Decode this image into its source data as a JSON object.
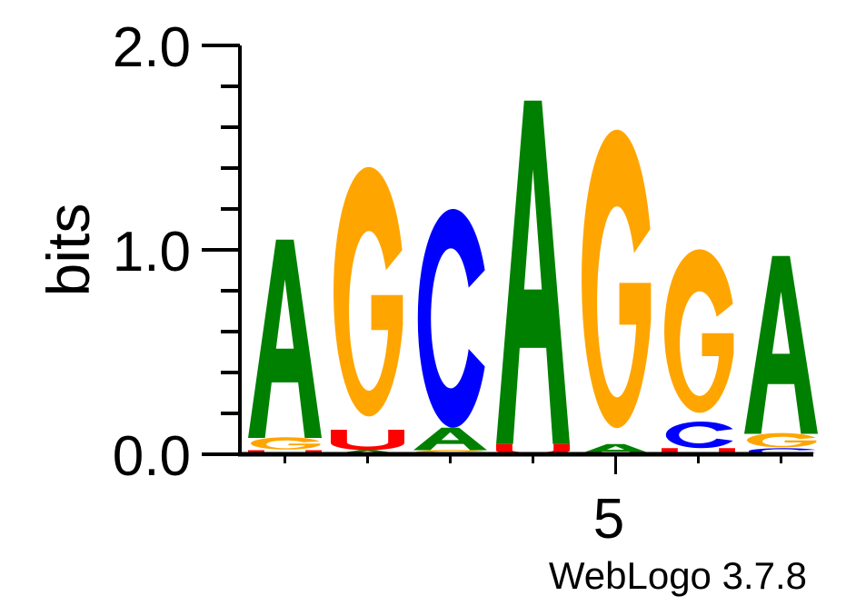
{
  "chart_data": {
    "type": "sequence-logo",
    "ylabel": "bits",
    "ylim": [
      0,
      2
    ],
    "y_ticks": [
      "0.0",
      "1.0",
      "2.0"
    ],
    "x_ticks": [
      1,
      2,
      3,
      4,
      5,
      6,
      7
    ],
    "x_tick_labels": {
      "5": "5"
    },
    "colors": {
      "A": "#008000",
      "G": "#ffa500",
      "C": "#0000ff",
      "U": "#ff0000"
    },
    "positions": [
      {
        "position": 1,
        "stack": [
          {
            "letter": "U",
            "bits": 0.02
          },
          {
            "letter": "G",
            "bits": 0.06
          },
          {
            "letter": "A",
            "bits": 0.97
          }
        ]
      },
      {
        "position": 2,
        "stack": [
          {
            "letter": "A",
            "bits": 0.02
          },
          {
            "letter": "U",
            "bits": 0.1
          },
          {
            "letter": "G",
            "bits": 1.22
          }
        ]
      },
      {
        "position": 3,
        "stack": [
          {
            "letter": "G",
            "bits": 0.02
          },
          {
            "letter": "A",
            "bits": 0.11
          },
          {
            "letter": "C",
            "bits": 1.07
          }
        ]
      },
      {
        "position": 4,
        "stack": [
          {
            "letter": "U",
            "bits": 0.05
          },
          {
            "letter": "A",
            "bits": 1.68
          }
        ]
      },
      {
        "position": 5,
        "stack": [
          {
            "letter": "A",
            "bits": 0.05
          },
          {
            "letter": "G",
            "bits": 1.46
          }
        ]
      },
      {
        "position": 6,
        "stack": [
          {
            "letter": "U",
            "bits": 0.03
          },
          {
            "letter": "C",
            "bits": 0.13
          },
          {
            "letter": "G",
            "bits": 0.8
          }
        ]
      },
      {
        "position": 7,
        "stack": [
          {
            "letter": "C",
            "bits": 0.03
          },
          {
            "letter": "G",
            "bits": 0.07
          },
          {
            "letter": "A",
            "bits": 0.87
          }
        ]
      }
    ]
  },
  "credit": "WebLogo 3.7.8"
}
